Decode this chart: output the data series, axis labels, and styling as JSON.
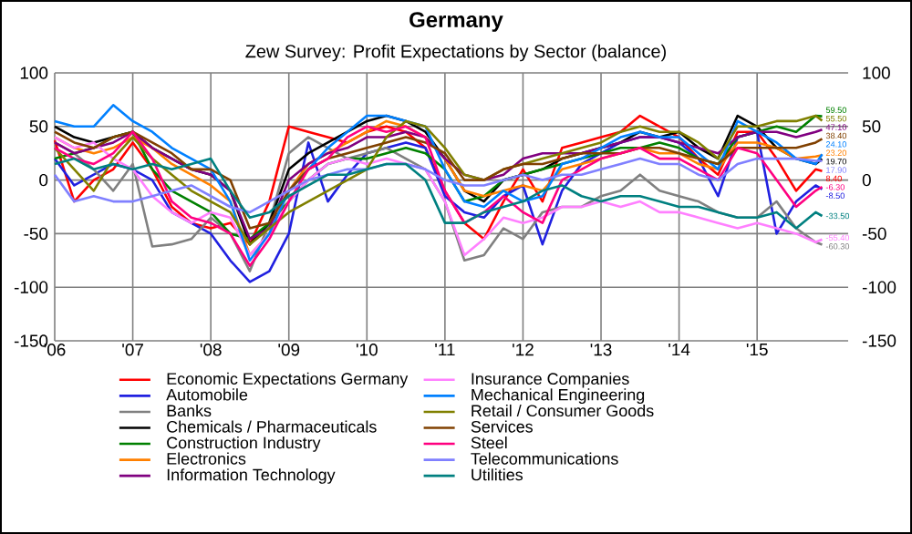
{
  "chart_data": {
    "type": "line",
    "title": "Germany",
    "subtitle": "Zew Survey: Profit Expectations by Sector (balance)",
    "x": [
      "2006-01",
      "2006-04",
      "2006-07",
      "2006-10",
      "2007-01",
      "2007-04",
      "2007-07",
      "2007-10",
      "2008-01",
      "2008-04",
      "2008-07",
      "2008-10",
      "2009-01",
      "2009-04",
      "2009-07",
      "2009-10",
      "2010-01",
      "2010-04",
      "2010-07",
      "2010-10",
      "2011-01",
      "2011-04",
      "2011-07",
      "2011-10",
      "2012-01",
      "2012-04",
      "2012-07",
      "2012-10",
      "2013-01",
      "2013-04",
      "2013-07",
      "2013-10",
      "2014-01",
      "2014-04",
      "2014-07",
      "2014-10",
      "2015-01",
      "2015-04",
      "2015-07",
      "2015-10",
      "2015-11"
    ],
    "xlim": [
      "2006-01",
      "2016-03"
    ],
    "xticks": [
      {
        "value": "2006-01",
        "label": "'06"
      },
      {
        "value": "2007-01",
        "label": "'07"
      },
      {
        "value": "2008-01",
        "label": "'08"
      },
      {
        "value": "2009-01",
        "label": "'09"
      },
      {
        "value": "2010-01",
        "label": "'10"
      },
      {
        "value": "2011-01",
        "label": "'11"
      },
      {
        "value": "2012-01",
        "label": "'12"
      },
      {
        "value": "2013-01",
        "label": "'13"
      },
      {
        "value": "2014-01",
        "label": "'14"
      },
      {
        "value": "2015-01",
        "label": "'15"
      }
    ],
    "ylim": [
      -150,
      100
    ],
    "yticks": [
      -150,
      -100,
      -50,
      0,
      50,
      100
    ],
    "y2lim": [
      -150,
      100
    ],
    "y2ticks": [
      -150,
      -100,
      -50,
      0,
      50,
      100
    ],
    "grid": true,
    "legend": "bottom",
    "series": [
      {
        "name": "Economic Expectations Germany",
        "color": "#ff0000",
        "values": [
          37,
          -20,
          0,
          10,
          35,
          10,
          -25,
          -40,
          -45,
          -40,
          -60,
          -20,
          50,
          45,
          40,
          35,
          45,
          50,
          45,
          30,
          -10,
          -40,
          -55,
          -20,
          10,
          -20,
          30,
          35,
          40,
          45,
          60,
          50,
          40,
          20,
          5,
          45,
          45,
          20,
          -10,
          10,
          8.4
        ],
        "value_labels": [
          null,
          null,
          null,
          null,
          null,
          null,
          null,
          null,
          null,
          null,
          null,
          null,
          null,
          null,
          null,
          null,
          null,
          null,
          null,
          null,
          null,
          null,
          null,
          null,
          null,
          null,
          null,
          null,
          null,
          null,
          null,
          null,
          null,
          null,
          null,
          null,
          null,
          null,
          null,
          null,
          "8.40"
        ]
      },
      {
        "name": "Automobile",
        "color": "#2020e0",
        "values": [
          20,
          -5,
          5,
          15,
          10,
          0,
          -30,
          -40,
          -50,
          -75,
          -95,
          -85,
          -50,
          35,
          -20,
          5,
          25,
          30,
          35,
          30,
          -15,
          -30,
          -35,
          -15,
          -5,
          -60,
          -10,
          15,
          25,
          35,
          40,
          40,
          35,
          20,
          -15,
          40,
          45,
          -50,
          -20,
          -5,
          -8.5
        ],
        "value_labels": [
          null,
          null,
          null,
          null,
          null,
          null,
          null,
          null,
          null,
          null,
          null,
          null,
          null,
          null,
          null,
          null,
          null,
          null,
          null,
          null,
          null,
          null,
          null,
          null,
          null,
          null,
          null,
          null,
          null,
          null,
          null,
          null,
          null,
          null,
          null,
          null,
          null,
          null,
          null,
          null,
          "-8.50"
        ]
      },
      {
        "name": "Banks",
        "color": "#808080",
        "values": [
          35,
          25,
          10,
          -10,
          15,
          -62,
          -60,
          -55,
          -35,
          -50,
          -85,
          -40,
          25,
          40,
          30,
          20,
          25,
          30,
          20,
          10,
          -20,
          -75,
          -70,
          -45,
          -55,
          -30,
          -25,
          -25,
          -15,
          -10,
          5,
          -10,
          -15,
          -20,
          -30,
          -35,
          -35,
          -20,
          -45,
          -58,
          -60.3
        ],
        "value_labels": [
          null,
          null,
          null,
          null,
          null,
          null,
          null,
          null,
          null,
          null,
          null,
          null,
          null,
          null,
          null,
          null,
          null,
          null,
          null,
          null,
          null,
          null,
          null,
          null,
          null,
          null,
          null,
          null,
          null,
          null,
          null,
          null,
          null,
          null,
          null,
          null,
          null,
          null,
          null,
          null,
          "-60.30"
        ]
      },
      {
        "name": "Chemicals / Pharmaceuticals",
        "color": "#000000",
        "values": [
          50,
          40,
          35,
          40,
          45,
          30,
          20,
          10,
          5,
          -10,
          -60,
          -40,
          10,
          25,
          35,
          45,
          55,
          60,
          55,
          45,
          20,
          -10,
          -20,
          0,
          5,
          10,
          20,
          25,
          30,
          35,
          45,
          40,
          45,
          30,
          20,
          60,
          50,
          30,
          20,
          15,
          19.7
        ],
        "value_labels": [
          null,
          null,
          null,
          null,
          null,
          null,
          null,
          null,
          null,
          null,
          null,
          null,
          null,
          null,
          null,
          null,
          null,
          null,
          null,
          null,
          null,
          null,
          null,
          null,
          null,
          null,
          null,
          null,
          null,
          null,
          null,
          null,
          null,
          null,
          null,
          null,
          null,
          null,
          null,
          null,
          "19.70"
        ]
      },
      {
        "name": "Construction Industry",
        "color": "#008000",
        "values": [
          20,
          25,
          30,
          40,
          45,
          10,
          -10,
          -20,
          -30,
          -50,
          -55,
          -40,
          -20,
          0,
          15,
          20,
          20,
          25,
          30,
          25,
          10,
          -20,
          -15,
          0,
          5,
          10,
          15,
          20,
          25,
          30,
          30,
          35,
          30,
          20,
          15,
          40,
          45,
          50,
          45,
          60,
          59.5
        ],
        "value_labels": [
          null,
          null,
          null,
          null,
          null,
          null,
          null,
          null,
          null,
          null,
          null,
          null,
          null,
          null,
          null,
          null,
          null,
          null,
          null,
          null,
          null,
          null,
          null,
          null,
          null,
          null,
          null,
          null,
          null,
          null,
          null,
          null,
          null,
          null,
          null,
          null,
          null,
          null,
          null,
          null,
          "59.50"
        ]
      },
      {
        "name": "Electronics",
        "color": "#ff8000",
        "values": [
          40,
          30,
          25,
          30,
          40,
          30,
          15,
          5,
          -5,
          -20,
          -70,
          -50,
          -10,
          15,
          25,
          35,
          45,
          55,
          50,
          40,
          20,
          -10,
          -15,
          -10,
          -5,
          -10,
          10,
          15,
          20,
          25,
          30,
          25,
          25,
          15,
          10,
          35,
          35,
          30,
          20,
          22,
          23.2
        ],
        "value_labels": [
          null,
          null,
          null,
          null,
          null,
          null,
          null,
          null,
          null,
          null,
          null,
          null,
          null,
          null,
          null,
          null,
          null,
          null,
          null,
          null,
          null,
          null,
          null,
          null,
          null,
          null,
          null,
          null,
          null,
          null,
          null,
          null,
          null,
          null,
          null,
          null,
          null,
          null,
          null,
          null,
          "23.20"
        ]
      },
      {
        "name": "Information Technology",
        "color": "#800080",
        "values": [
          35,
          25,
          30,
          35,
          45,
          30,
          20,
          10,
          5,
          -10,
          -55,
          -45,
          0,
          15,
          25,
          30,
          40,
          40,
          45,
          40,
          20,
          5,
          0,
          5,
          20,
          25,
          25,
          25,
          30,
          35,
          40,
          40,
          35,
          30,
          25,
          40,
          45,
          45,
          40,
          45,
          47.1
        ],
        "value_labels": [
          null,
          null,
          null,
          null,
          null,
          null,
          null,
          null,
          null,
          null,
          null,
          null,
          null,
          null,
          null,
          null,
          null,
          null,
          null,
          null,
          null,
          null,
          null,
          null,
          null,
          null,
          null,
          null,
          null,
          null,
          null,
          null,
          null,
          null,
          null,
          null,
          null,
          null,
          null,
          null,
          "47.10"
        ]
      },
      {
        "name": "Insurance Companies",
        "color": "#ff80ff",
        "values": [
          40,
          30,
          35,
          20,
          10,
          -15,
          -30,
          -40,
          -30,
          -35,
          -70,
          -50,
          -20,
          0,
          15,
          20,
          15,
          20,
          15,
          10,
          -20,
          -70,
          -55,
          -35,
          -40,
          -35,
          -25,
          -25,
          -20,
          -25,
          -20,
          -30,
          -30,
          -35,
          -40,
          -45,
          -40,
          -45,
          -50,
          -58,
          -55.4
        ],
        "value_labels": [
          null,
          null,
          null,
          null,
          null,
          null,
          null,
          null,
          null,
          null,
          null,
          null,
          null,
          null,
          null,
          null,
          null,
          null,
          null,
          null,
          null,
          null,
          null,
          null,
          null,
          null,
          null,
          null,
          null,
          null,
          null,
          null,
          null,
          null,
          null,
          null,
          null,
          null,
          null,
          null,
          "-55.40"
        ]
      },
      {
        "name": "Mechanical Engineering",
        "color": "#0080ff",
        "values": [
          55,
          50,
          50,
          70,
          55,
          45,
          30,
          20,
          10,
          -20,
          -75,
          -50,
          -10,
          10,
          30,
          45,
          60,
          60,
          55,
          50,
          10,
          -20,
          -25,
          -10,
          -20,
          -15,
          15,
          20,
          30,
          40,
          45,
          40,
          40,
          25,
          10,
          55,
          45,
          35,
          20,
          15,
          24.1
        ],
        "value_labels": [
          null,
          null,
          null,
          null,
          null,
          null,
          null,
          null,
          null,
          null,
          null,
          null,
          null,
          null,
          null,
          null,
          null,
          null,
          null,
          null,
          null,
          null,
          null,
          null,
          null,
          null,
          null,
          null,
          null,
          null,
          null,
          null,
          null,
          null,
          null,
          null,
          null,
          null,
          null,
          null,
          "24.10"
        ]
      },
      {
        "name": "Retail / Consumer Goods",
        "color": "#808000",
        "values": [
          30,
          10,
          -10,
          20,
          40,
          20,
          5,
          -10,
          -20,
          -30,
          -60,
          -45,
          -30,
          -20,
          -10,
          0,
          10,
          40,
          55,
          50,
          30,
          5,
          0,
          10,
          15,
          20,
          25,
          30,
          35,
          45,
          50,
          45,
          45,
          35,
          20,
          50,
          50,
          55,
          55,
          60,
          55.5
        ],
        "value_labels": [
          null,
          null,
          null,
          null,
          null,
          null,
          null,
          null,
          null,
          null,
          null,
          null,
          null,
          null,
          null,
          null,
          null,
          null,
          null,
          null,
          null,
          null,
          null,
          null,
          null,
          null,
          null,
          null,
          null,
          null,
          null,
          null,
          null,
          null,
          null,
          null,
          null,
          null,
          null,
          null,
          "55.50"
        ]
      },
      {
        "name": "Services",
        "color": "#804000",
        "values": [
          45,
          35,
          30,
          40,
          45,
          35,
          25,
          10,
          10,
          0,
          -45,
          -40,
          -10,
          10,
          20,
          25,
          30,
          35,
          40,
          35,
          25,
          0,
          0,
          10,
          15,
          15,
          20,
          25,
          25,
          25,
          30,
          30,
          25,
          20,
          15,
          30,
          30,
          30,
          30,
          35,
          38.4
        ],
        "value_labels": [
          null,
          null,
          null,
          null,
          null,
          null,
          null,
          null,
          null,
          null,
          null,
          null,
          null,
          null,
          null,
          null,
          null,
          null,
          null,
          null,
          null,
          null,
          null,
          null,
          null,
          null,
          null,
          null,
          null,
          null,
          null,
          null,
          null,
          null,
          null,
          null,
          null,
          null,
          null,
          null,
          "38.40"
        ]
      },
      {
        "name": "Steel",
        "color": "#ff0080",
        "values": [
          30,
          20,
          15,
          25,
          45,
          20,
          -20,
          -35,
          -40,
          -50,
          -80,
          -55,
          -20,
          10,
          20,
          40,
          50,
          45,
          50,
          40,
          -10,
          -40,
          -30,
          -15,
          -30,
          -40,
          0,
          10,
          20,
          25,
          30,
          20,
          20,
          10,
          0,
          30,
          25,
          0,
          -25,
          -10,
          -6.3
        ],
        "value_labels": [
          null,
          null,
          null,
          null,
          null,
          null,
          null,
          null,
          null,
          null,
          null,
          null,
          null,
          null,
          null,
          null,
          null,
          null,
          null,
          null,
          null,
          null,
          null,
          null,
          null,
          null,
          null,
          null,
          null,
          null,
          null,
          null,
          null,
          null,
          null,
          null,
          null,
          null,
          null,
          null,
          "-6.30"
        ]
      },
      {
        "name": "Telecommunications",
        "color": "#8080ff",
        "values": [
          5,
          -20,
          -15,
          -20,
          -20,
          -15,
          -10,
          -5,
          -15,
          -25,
          -30,
          -20,
          -10,
          0,
          5,
          10,
          10,
          15,
          15,
          10,
          0,
          -5,
          -5,
          0,
          5,
          0,
          5,
          5,
          10,
          15,
          20,
          15,
          15,
          5,
          0,
          15,
          20,
          20,
          20,
          18,
          17.9
        ],
        "value_labels": [
          null,
          null,
          null,
          null,
          null,
          null,
          null,
          null,
          null,
          null,
          null,
          null,
          null,
          null,
          null,
          null,
          null,
          null,
          null,
          null,
          null,
          null,
          null,
          null,
          null,
          null,
          null,
          null,
          null,
          null,
          null,
          null,
          null,
          null,
          null,
          null,
          null,
          null,
          null,
          null,
          "17.90"
        ]
      },
      {
        "name": "Utilities",
        "color": "#008080",
        "values": [
          15,
          20,
          10,
          15,
          10,
          15,
          10,
          15,
          20,
          -10,
          -35,
          -30,
          -15,
          -5,
          5,
          5,
          10,
          15,
          15,
          0,
          -40,
          -40,
          -30,
          -25,
          -20,
          -10,
          -5,
          -15,
          -20,
          -15,
          -15,
          -20,
          -25,
          -25,
          -30,
          -35,
          -35,
          -30,
          -45,
          -30,
          -33.5
        ],
        "value_labels": [
          null,
          null,
          null,
          null,
          null,
          null,
          null,
          null,
          null,
          null,
          null,
          null,
          null,
          null,
          null,
          null,
          null,
          null,
          null,
          null,
          null,
          null,
          null,
          null,
          null,
          null,
          null,
          null,
          null,
          null,
          null,
          null,
          null,
          null,
          null,
          null,
          null,
          null,
          null,
          null,
          "-33.50"
        ]
      }
    ]
  }
}
